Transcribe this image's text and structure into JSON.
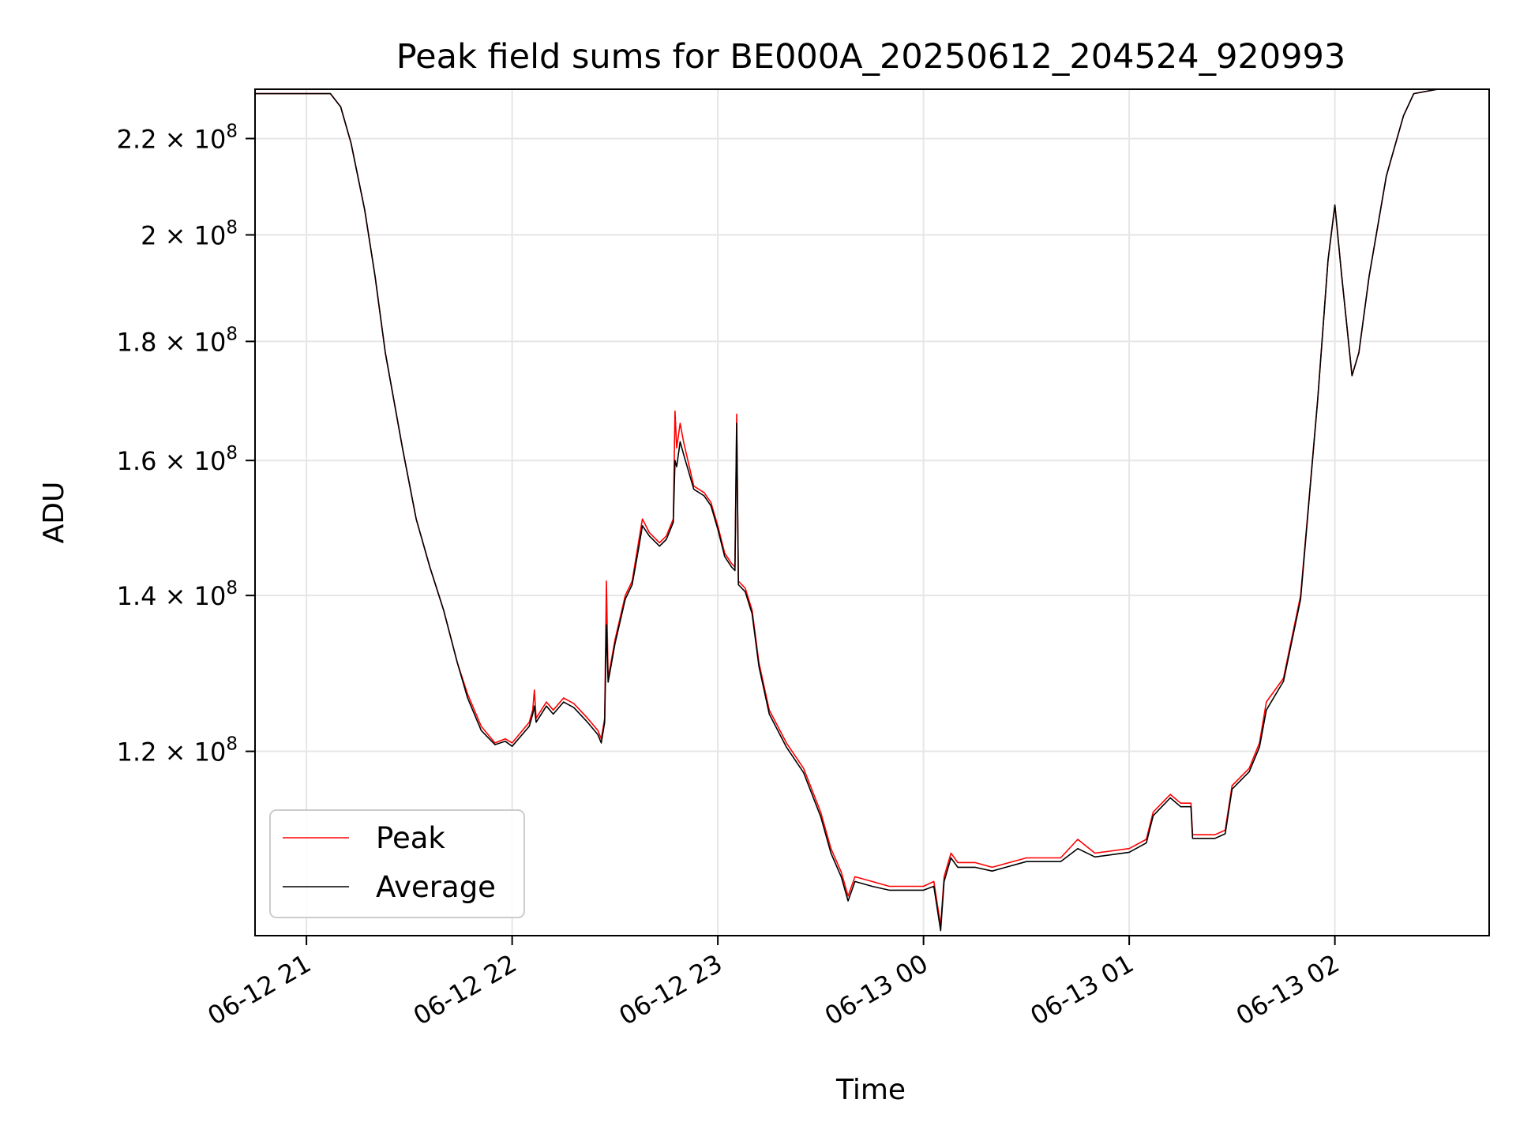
{
  "chart_data": {
    "type": "line",
    "title": "Peak field sums for BE000A_20250612_204524_920993",
    "xlabel": "Time",
    "ylabel": "ADU",
    "x_range": [
      "2025-06-12T20:45:00",
      "2025-06-13T02:45:00"
    ],
    "ylim": [
      100000000,
      231000000
    ],
    "y_scale": "log",
    "grid": true,
    "legend_position": "lower-left",
    "x_ticks": [
      {
        "value": "2025-06-12T21:00:00",
        "label": "06-12 21"
      },
      {
        "value": "2025-06-12T22:00:00",
        "label": "06-12 22"
      },
      {
        "value": "2025-06-12T23:00:00",
        "label": "06-12 23"
      },
      {
        "value": "2025-06-13T00:00:00",
        "label": "06-13 00"
      },
      {
        "value": "2025-06-13T01:00:00",
        "label": "06-13 01"
      },
      {
        "value": "2025-06-13T02:00:00",
        "label": "06-13 02"
      }
    ],
    "y_ticks": [
      {
        "value": 120000000,
        "mantissa": "1.2",
        "exponent": "8"
      },
      {
        "value": 140000000,
        "mantissa": "1.4",
        "exponent": "8"
      },
      {
        "value": 160000000,
        "mantissa": "1.6",
        "exponent": "8"
      },
      {
        "value": 180000000,
        "mantissa": "1.8",
        "exponent": "8"
      },
      {
        "value": 200000000,
        "mantissa": "2",
        "exponent": "8"
      },
      {
        "value": 220000000,
        "mantissa": "2.2",
        "exponent": "8"
      }
    ],
    "series": [
      {
        "name": "Peak",
        "color": "#ff0000",
        "points": [
          [
            "2025-06-12T20:45:00",
            230000000
          ],
          [
            "2025-06-12T21:00:00",
            230000000
          ],
          [
            "2025-06-12T21:07:00",
            230000000
          ],
          [
            "2025-06-12T21:10:00",
            227000000
          ],
          [
            "2025-06-12T21:13:00",
            219000000
          ],
          [
            "2025-06-12T21:17:00",
            205000000
          ],
          [
            "2025-06-12T21:20:00",
            192000000
          ],
          [
            "2025-06-12T21:23:00",
            178000000
          ],
          [
            "2025-06-12T21:28:00",
            162000000
          ],
          [
            "2025-06-12T21:32:00",
            151000000
          ],
          [
            "2025-06-12T21:36:00",
            144000000
          ],
          [
            "2025-06-12T21:40:00",
            138000000
          ],
          [
            "2025-06-12T21:44:00",
            131000000
          ],
          [
            "2025-06-12T21:47:00",
            127000000
          ],
          [
            "2025-06-12T21:51:00",
            123000000
          ],
          [
            "2025-06-12T21:55:00",
            121000000
          ],
          [
            "2025-06-12T21:58:00",
            121500000
          ],
          [
            "2025-06-12T22:00:00",
            121000000
          ],
          [
            "2025-06-12T22:05:00",
            123500000
          ],
          [
            "2025-06-12T22:06:00",
            125000000
          ],
          [
            "2025-06-12T22:06:30",
            127500000
          ],
          [
            "2025-06-12T22:07:00",
            124000000
          ],
          [
            "2025-06-12T22:10:00",
            126000000
          ],
          [
            "2025-06-12T22:12:00",
            125000000
          ],
          [
            "2025-06-12T22:15:00",
            126500000
          ],
          [
            "2025-06-12T22:18:00",
            125800000
          ],
          [
            "2025-06-12T22:22:00",
            124000000
          ],
          [
            "2025-06-12T22:25:00",
            122500000
          ],
          [
            "2025-06-12T22:26:00",
            121500000
          ],
          [
            "2025-06-12T22:27:00",
            124000000
          ],
          [
            "2025-06-12T22:27:30",
            142000000
          ],
          [
            "2025-06-12T22:28:00",
            129000000
          ],
          [
            "2025-06-12T22:30:00",
            134000000
          ],
          [
            "2025-06-12T22:33:00",
            140000000
          ],
          [
            "2025-06-12T22:35:00",
            142000000
          ],
          [
            "2025-06-12T22:37:00",
            148000000
          ],
          [
            "2025-06-12T22:38:00",
            151000000
          ],
          [
            "2025-06-12T22:40:00",
            149000000
          ],
          [
            "2025-06-12T22:43:00",
            147500000
          ],
          [
            "2025-06-12T22:45:00",
            148500000
          ],
          [
            "2025-06-12T22:47:00",
            151000000
          ],
          [
            "2025-06-12T22:47:30",
            168000000
          ],
          [
            "2025-06-12T22:48:00",
            162000000
          ],
          [
            "2025-06-12T22:49:00",
            166000000
          ],
          [
            "2025-06-12T22:50:00",
            163000000
          ],
          [
            "2025-06-12T22:53:00",
            156000000
          ],
          [
            "2025-06-12T22:56:00",
            155000000
          ],
          [
            "2025-06-12T22:58:00",
            153500000
          ],
          [
            "2025-06-12T23:00:00",
            150000000
          ],
          [
            "2025-06-12T23:02:00",
            146000000
          ],
          [
            "2025-06-12T23:04:00",
            144500000
          ],
          [
            "2025-06-12T23:05:00",
            144000000
          ],
          [
            "2025-06-12T23:05:30",
            167500000
          ],
          [
            "2025-06-12T23:06:00",
            142000000
          ],
          [
            "2025-06-12T23:08:00",
            141000000
          ],
          [
            "2025-06-12T23:10:00",
            138000000
          ],
          [
            "2025-06-12T23:12:00",
            131000000
          ],
          [
            "2025-06-12T23:15:00",
            125000000
          ],
          [
            "2025-06-12T23:20:00",
            121000000
          ],
          [
            "2025-06-12T23:25:00",
            118000000
          ],
          [
            "2025-06-12T23:30:00",
            113000000
          ],
          [
            "2025-06-12T23:33:00",
            109000000
          ],
          [
            "2025-06-12T23:36:00",
            106500000
          ],
          [
            "2025-06-12T23:38:00",
            104000000
          ],
          [
            "2025-06-12T23:40:00",
            106000000
          ],
          [
            "2025-06-12T23:45:00",
            105500000
          ],
          [
            "2025-06-12T23:50:00",
            105000000
          ],
          [
            "2025-06-12T23:55:00",
            105000000
          ],
          [
            "2025-06-13T00:00:00",
            105000000
          ],
          [
            "2025-06-13T00:03:00",
            105500000
          ],
          [
            "2025-06-13T00:05:00",
            101000000
          ],
          [
            "2025-06-13T00:06:00",
            106000000
          ],
          [
            "2025-06-13T00:08:00",
            108500000
          ],
          [
            "2025-06-13T00:10:00",
            107500000
          ],
          [
            "2025-06-13T00:15:00",
            107500000
          ],
          [
            "2025-06-13T00:20:00",
            107000000
          ],
          [
            "2025-06-13T00:30:00",
            108000000
          ],
          [
            "2025-06-13T00:40:00",
            108000000
          ],
          [
            "2025-06-13T00:45:00",
            110000000
          ],
          [
            "2025-06-13T00:50:00",
            108500000
          ],
          [
            "2025-06-13T01:00:00",
            109000000
          ],
          [
            "2025-06-13T01:05:00",
            110000000
          ],
          [
            "2025-06-13T01:07:00",
            113000000
          ],
          [
            "2025-06-13T01:12:00",
            115000000
          ],
          [
            "2025-06-13T01:15:00",
            114000000
          ],
          [
            "2025-06-13T01:18:00",
            114000000
          ],
          [
            "2025-06-13T01:18:30",
            110500000
          ],
          [
            "2025-06-13T01:25:00",
            110500000
          ],
          [
            "2025-06-13T01:28:00",
            111000000
          ],
          [
            "2025-06-13T01:30:00",
            116000000
          ],
          [
            "2025-06-13T01:35:00",
            118000000
          ],
          [
            "2025-06-13T01:38:00",
            121000000
          ],
          [
            "2025-06-13T01:40:00",
            126000000
          ],
          [
            "2025-06-13T01:45:00",
            129000000
          ],
          [
            "2025-06-13T01:50:00",
            140000000
          ],
          [
            "2025-06-13T01:55:00",
            170000000
          ],
          [
            "2025-06-13T01:58:00",
            195000000
          ],
          [
            "2025-06-13T02:00:00",
            206000000
          ],
          [
            "2025-06-13T02:02:00",
            192000000
          ],
          [
            "2025-06-13T02:05:00",
            174000000
          ],
          [
            "2025-06-13T02:07:00",
            178000000
          ],
          [
            "2025-06-13T02:10:00",
            192000000
          ],
          [
            "2025-06-13T02:15:00",
            212000000
          ],
          [
            "2025-06-13T02:20:00",
            225000000
          ],
          [
            "2025-06-13T02:23:00",
            230000000
          ],
          [
            "2025-06-13T02:30:00",
            231000000
          ]
        ]
      },
      {
        "name": "Average",
        "color": "#000000",
        "points": [
          [
            "2025-06-12T20:45:00",
            230000000
          ],
          [
            "2025-06-12T21:00:00",
            230000000
          ],
          [
            "2025-06-12T21:07:00",
            230000000
          ],
          [
            "2025-06-12T21:10:00",
            227000000
          ],
          [
            "2025-06-12T21:13:00",
            219000000
          ],
          [
            "2025-06-12T21:17:00",
            205000000
          ],
          [
            "2025-06-12T21:20:00",
            192000000
          ],
          [
            "2025-06-12T21:23:00",
            178000000
          ],
          [
            "2025-06-12T21:28:00",
            162000000
          ],
          [
            "2025-06-12T21:32:00",
            151000000
          ],
          [
            "2025-06-12T21:36:00",
            144000000
          ],
          [
            "2025-06-12T21:40:00",
            138000000
          ],
          [
            "2025-06-12T21:44:00",
            131000000
          ],
          [
            "2025-06-12T21:47:00",
            126500000
          ],
          [
            "2025-06-12T21:51:00",
            122500000
          ],
          [
            "2025-06-12T21:55:00",
            120800000
          ],
          [
            "2025-06-12T21:58:00",
            121200000
          ],
          [
            "2025-06-12T22:00:00",
            120600000
          ],
          [
            "2025-06-12T22:05:00",
            123000000
          ],
          [
            "2025-06-12T22:06:00",
            124500000
          ],
          [
            "2025-06-12T22:06:30",
            125500000
          ],
          [
            "2025-06-12T22:07:00",
            123500000
          ],
          [
            "2025-06-12T22:10:00",
            125500000
          ],
          [
            "2025-06-12T22:12:00",
            124500000
          ],
          [
            "2025-06-12T22:15:00",
            126000000
          ],
          [
            "2025-06-12T22:18:00",
            125300000
          ],
          [
            "2025-06-12T22:22:00",
            123500000
          ],
          [
            "2025-06-12T22:25:00",
            122000000
          ],
          [
            "2025-06-12T22:26:00",
            121000000
          ],
          [
            "2025-06-12T22:27:00",
            123500000
          ],
          [
            "2025-06-12T22:27:30",
            136000000
          ],
          [
            "2025-06-12T22:28:00",
            128500000
          ],
          [
            "2025-06-12T22:30:00",
            133500000
          ],
          [
            "2025-06-12T22:33:00",
            139500000
          ],
          [
            "2025-06-12T22:35:00",
            141500000
          ],
          [
            "2025-06-12T22:37:00",
            147000000
          ],
          [
            "2025-06-12T22:38:00",
            150000000
          ],
          [
            "2025-06-12T22:40:00",
            148500000
          ],
          [
            "2025-06-12T22:43:00",
            147000000
          ],
          [
            "2025-06-12T22:45:00",
            148000000
          ],
          [
            "2025-06-12T22:47:00",
            150500000
          ],
          [
            "2025-06-12T22:47:30",
            160000000
          ],
          [
            "2025-06-12T22:48:00",
            159000000
          ],
          [
            "2025-06-12T22:49:00",
            163000000
          ],
          [
            "2025-06-12T22:50:00",
            161000000
          ],
          [
            "2025-06-12T22:53:00",
            155500000
          ],
          [
            "2025-06-12T22:56:00",
            154500000
          ],
          [
            "2025-06-12T22:58:00",
            153000000
          ],
          [
            "2025-06-12T23:00:00",
            149500000
          ],
          [
            "2025-06-12T23:02:00",
            145500000
          ],
          [
            "2025-06-12T23:04:00",
            144000000
          ],
          [
            "2025-06-12T23:05:00",
            143500000
          ],
          [
            "2025-06-12T23:05:30",
            166000000
          ],
          [
            "2025-06-12T23:06:00",
            141500000
          ],
          [
            "2025-06-12T23:08:00",
            140500000
          ],
          [
            "2025-06-12T23:10:00",
            137500000
          ],
          [
            "2025-06-12T23:12:00",
            130500000
          ],
          [
            "2025-06-12T23:15:00",
            124500000
          ],
          [
            "2025-06-12T23:20:00",
            120500000
          ],
          [
            "2025-06-12T23:25:00",
            117500000
          ],
          [
            "2025-06-12T23:30:00",
            112500000
          ],
          [
            "2025-06-12T23:33:00",
            108500000
          ],
          [
            "2025-06-12T23:36:00",
            106000000
          ],
          [
            "2025-06-12T23:38:00",
            103500000
          ],
          [
            "2025-06-12T23:40:00",
            105500000
          ],
          [
            "2025-06-12T23:45:00",
            105000000
          ],
          [
            "2025-06-12T23:50:00",
            104600000
          ],
          [
            "2025-06-12T23:55:00",
            104600000
          ],
          [
            "2025-06-13T00:00:00",
            104600000
          ],
          [
            "2025-06-13T00:03:00",
            105000000
          ],
          [
            "2025-06-13T00:05:00",
            100500000
          ],
          [
            "2025-06-13T00:06:00",
            105500000
          ],
          [
            "2025-06-13T00:08:00",
            108000000
          ],
          [
            "2025-06-13T00:10:00",
            107000000
          ],
          [
            "2025-06-13T00:15:00",
            107000000
          ],
          [
            "2025-06-13T00:20:00",
            106600000
          ],
          [
            "2025-06-13T00:30:00",
            107600000
          ],
          [
            "2025-06-13T00:40:00",
            107600000
          ],
          [
            "2025-06-13T00:45:00",
            109000000
          ],
          [
            "2025-06-13T00:50:00",
            108100000
          ],
          [
            "2025-06-13T01:00:00",
            108600000
          ],
          [
            "2025-06-13T01:05:00",
            109600000
          ],
          [
            "2025-06-13T01:07:00",
            112600000
          ],
          [
            "2025-06-13T01:12:00",
            114600000
          ],
          [
            "2025-06-13T01:15:00",
            113600000
          ],
          [
            "2025-06-13T01:18:00",
            113600000
          ],
          [
            "2025-06-13T01:18:30",
            110100000
          ],
          [
            "2025-06-13T01:25:00",
            110100000
          ],
          [
            "2025-06-13T01:28:00",
            110600000
          ],
          [
            "2025-06-13T01:30:00",
            115600000
          ],
          [
            "2025-06-13T01:35:00",
            117600000
          ],
          [
            "2025-06-13T01:38:00",
            120500000
          ],
          [
            "2025-06-13T01:40:00",
            125000000
          ],
          [
            "2025-06-13T01:45:00",
            128600000
          ],
          [
            "2025-06-13T01:50:00",
            139500000
          ],
          [
            "2025-06-13T01:55:00",
            170000000
          ],
          [
            "2025-06-13T01:58:00",
            195000000
          ],
          [
            "2025-06-13T02:00:00",
            206000000
          ],
          [
            "2025-06-13T02:02:00",
            192000000
          ],
          [
            "2025-06-13T02:05:00",
            174000000
          ],
          [
            "2025-06-13T02:07:00",
            178000000
          ],
          [
            "2025-06-13T02:10:00",
            192000000
          ],
          [
            "2025-06-13T02:15:00",
            212000000
          ],
          [
            "2025-06-13T02:20:00",
            225000000
          ],
          [
            "2025-06-13T02:23:00",
            230000000
          ],
          [
            "2025-06-13T02:30:00",
            231000000
          ]
        ]
      }
    ]
  }
}
